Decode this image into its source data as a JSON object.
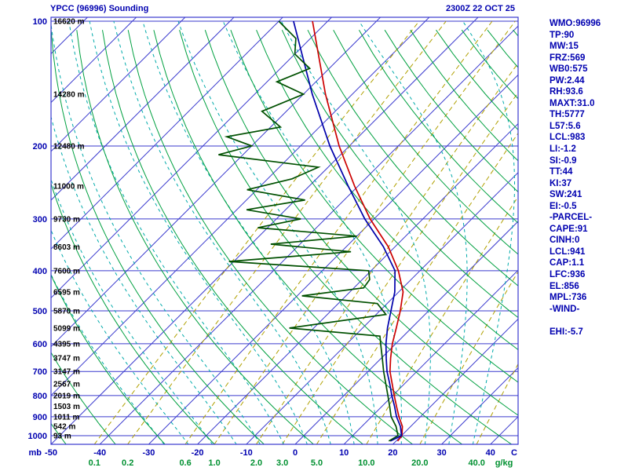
{
  "header": {
    "title": "YPCC (96996) Sounding",
    "datetime": "2300Z 22 OCT 25"
  },
  "stats_panel": {
    "lines": [
      "WMO:96996",
      "TP:90",
      "MW:15",
      "FRZ:569",
      "WB0:575",
      "PW:2.44",
      "RH:93.6",
      "MAXT:31.0",
      "TH:5777",
      "L57:5.6",
      "LCL:983",
      "LI:-1.2",
      "SI:-0.9",
      "TT:44",
      "KI:37",
      "SW:241",
      "EI:-0.5",
      "-PARCEL-",
      "CAPE:91",
      "CINH:0",
      "LCL:941",
      "CAP:1.1",
      "LFC:936",
      "EL:856",
      "MPL:736",
      "-WIND-",
      "",
      "EHI:-5.7"
    ]
  },
  "chart_data": {
    "type": "line",
    "title": "YPCC (96996) Sounding — Skew-T / Log-P",
    "x_axis": {
      "unit_left": "mb",
      "unit_right": "C",
      "temp_ticks_c": [
        -50,
        -40,
        -30,
        -20,
        -10,
        0,
        10,
        20,
        30,
        40
      ]
    },
    "y_axis": {
      "pressure_ticks_mb": [
        100,
        200,
        300,
        400,
        500,
        600,
        700,
        800,
        900,
        1000
      ],
      "range_mb": [
        100,
        1050
      ]
    },
    "height_labels": [
      [
        100,
        "16620 m"
      ],
      [
        150,
        "14280 m"
      ],
      [
        200,
        "12480 m"
      ],
      [
        250,
        "11000 m"
      ],
      [
        300,
        "9730 m"
      ],
      [
        350,
        "8603 m"
      ],
      [
        400,
        "7600 m"
      ],
      [
        450,
        "6595 m"
      ],
      [
        500,
        "5870 m"
      ],
      [
        550,
        "5099 m"
      ],
      [
        600,
        "4395 m"
      ],
      [
        650,
        "3747 m"
      ],
      [
        700,
        "3147 m"
      ],
      [
        750,
        "2567 m"
      ],
      [
        800,
        "2019 m"
      ],
      [
        850,
        "1503 m"
      ],
      [
        900,
        "1011 m"
      ],
      [
        950,
        "542 m"
      ],
      [
        1000,
        "93 m"
      ]
    ],
    "skew_grid": {
      "isotherms_c": {
        "min": -160,
        "max": 40,
        "step": 10
      },
      "dry_adiabats_c": {
        "min": -60,
        "max": 250,
        "step": 10
      },
      "moist_adiabats_c": [
        -30,
        -25,
        -20,
        -15,
        -10,
        -5,
        0,
        5,
        10,
        15,
        20,
        25,
        30,
        35
      ],
      "mixing_ratio_gkg": [
        0.1,
        0.2,
        0.6,
        1.0,
        2.0,
        3.0,
        5.0,
        10.0,
        20.0,
        40.0
      ],
      "mixing_unit": "g/kg"
    },
    "series": [
      {
        "name": "temperature",
        "color": "#cc0000",
        "points": [
          [
            1030,
            20.3
          ],
          [
            1000,
            20.1
          ],
          [
            950,
            18.3
          ],
          [
            900,
            15.6
          ],
          [
            850,
            13.0
          ],
          [
            800,
            10.3
          ],
          [
            750,
            7.5
          ],
          [
            700,
            4.5
          ],
          [
            650,
            1.9
          ],
          [
            600,
            -0.7
          ],
          [
            550,
            -3.1
          ],
          [
            500,
            -5.8
          ],
          [
            450,
            -9.1
          ],
          [
            400,
            -14.4
          ],
          [
            350,
            -21.4
          ],
          [
            300,
            -30.8
          ],
          [
            250,
            -40.7
          ],
          [
            200,
            -52.1
          ],
          [
            150,
            -65.5
          ],
          [
            100,
            -83.1
          ]
        ]
      },
      {
        "name": "parcel",
        "color": "#0000aa",
        "points": [
          [
            1030,
            18.8
          ],
          [
            1000,
            20.0
          ],
          [
            950,
            17.9
          ],
          [
            900,
            15.1
          ],
          [
            850,
            12.6
          ],
          [
            800,
            9.8
          ],
          [
            750,
            7.0
          ],
          [
            700,
            3.9
          ],
          [
            650,
            1.0
          ],
          [
            600,
            -2.0
          ],
          [
            550,
            -4.9
          ],
          [
            500,
            -7.7
          ],
          [
            450,
            -10.8
          ],
          [
            400,
            -15.1
          ],
          [
            350,
            -22.4
          ],
          [
            300,
            -31.9
          ],
          [
            250,
            -42.0
          ],
          [
            200,
            -54.0
          ],
          [
            150,
            -68.2
          ],
          [
            100,
            -87.0
          ]
        ]
      },
      {
        "name": "dewpoint",
        "color": "#005000",
        "points": [
          [
            1030,
            18.5
          ],
          [
            1000,
            19.3
          ],
          [
            950,
            17.0
          ],
          [
            900,
            14.0
          ],
          [
            850,
            11.6
          ],
          [
            800,
            9.0
          ],
          [
            750,
            6.2
          ],
          [
            700,
            3.2
          ],
          [
            650,
            0.2
          ],
          [
            600,
            -3.1
          ],
          [
            575,
            -4.8
          ],
          [
            550,
            -25.0
          ],
          [
            510,
            -8.0
          ],
          [
            480,
            -12.0
          ],
          [
            460,
            -29.0
          ],
          [
            440,
            -18.0
          ],
          [
            420,
            -18.5
          ],
          [
            400,
            -20.5
          ],
          [
            380,
            -51.0
          ],
          [
            360,
            -28.0
          ],
          [
            345,
            -46.0
          ],
          [
            330,
            -30.0
          ],
          [
            315,
            -52.0
          ],
          [
            300,
            -45.0
          ],
          [
            285,
            -58.0
          ],
          [
            270,
            -48.0
          ],
          [
            255,
            -62.0
          ],
          [
            240,
            -55.0
          ],
          [
            225,
            -52.0
          ],
          [
            210,
            -75.0
          ],
          [
            200,
            -70.0
          ],
          [
            190,
            -77.0
          ],
          [
            180,
            -68.0
          ],
          [
            165,
            -75.0
          ],
          [
            150,
            -70.0
          ],
          [
            140,
            -78.0
          ],
          [
            130,
            -74.0
          ],
          [
            120,
            -80.0
          ],
          [
            110,
            -83.0
          ],
          [
            100,
            -90.0
          ]
        ]
      }
    ]
  },
  "colors": {
    "background": "#ffffff",
    "grid_blue": "#3a3ace",
    "dry_adiabat": "#00a040",
    "moist_adiabat": "#00aaaa",
    "mixing_ratio": "#b0a000",
    "axis_text": "#0000b0",
    "height_text": "#000000",
    "mixing_text": "#009030"
  }
}
